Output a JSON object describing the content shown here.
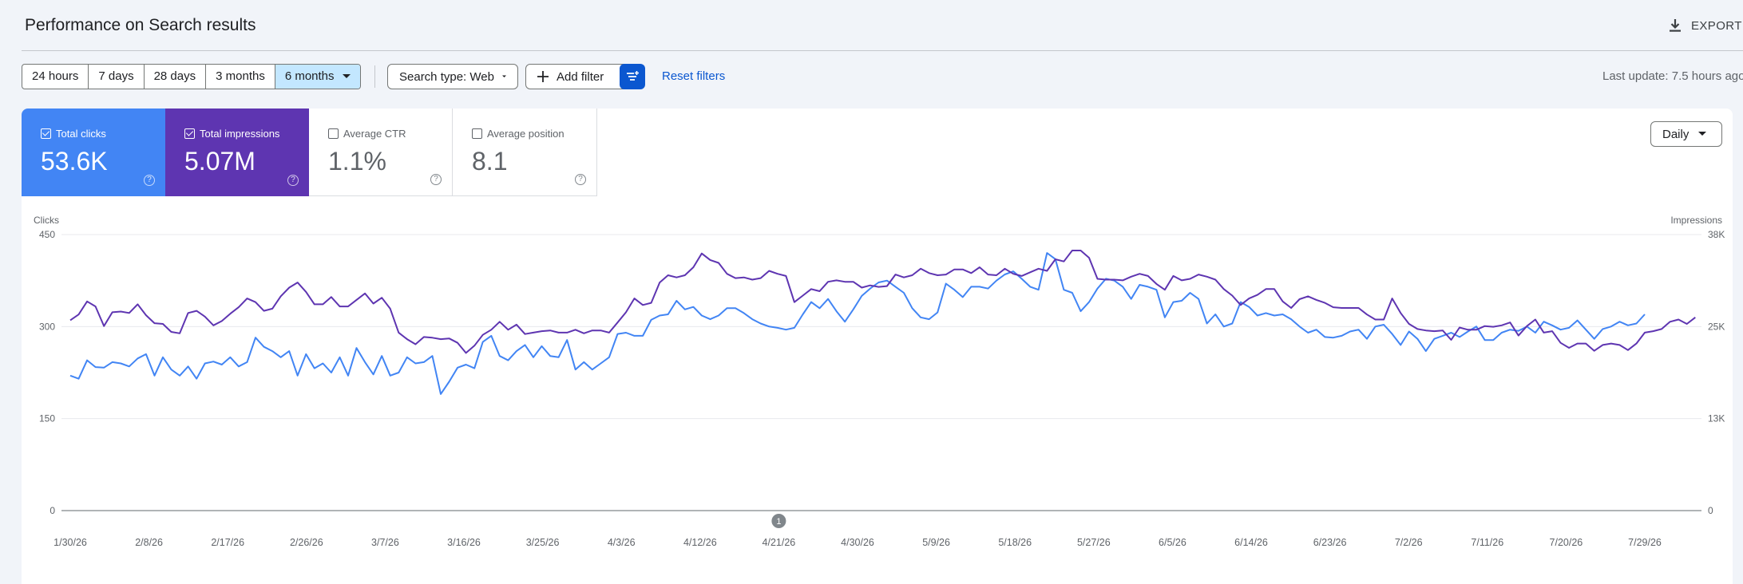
{
  "header": {
    "title": "Performance on Search results",
    "export_label": "EXPORT",
    "export_icon": "download-icon"
  },
  "filters": {
    "ranges": [
      "24 hours",
      "7 days",
      "28 days",
      "3 months",
      "6 months"
    ],
    "active_range": "6 months",
    "search_type_label": "Search type: Web",
    "add_filter_label": "Add filter",
    "reset_label": "Reset filters",
    "last_update": "Last update: 7.5 hours ago"
  },
  "metrics": {
    "clicks": {
      "label": "Total clicks",
      "value": "53.6K",
      "checked": true,
      "color": "#4285f4"
    },
    "impressions": {
      "label": "Total impressions",
      "value": "5.07M",
      "checked": true,
      "color": "#5e35b1"
    },
    "ctr": {
      "label": "Average CTR",
      "value": "1.1%",
      "checked": false
    },
    "position": {
      "label": "Average position",
      "value": "8.1",
      "checked": false
    }
  },
  "granularity": "Daily",
  "chart_data": {
    "type": "line",
    "ylabel_left": "Clicks",
    "ylabel_right": "Impressions",
    "y_left_ticks": [
      "450",
      "300",
      "150",
      "0"
    ],
    "y_left_range": [
      0,
      450
    ],
    "y_right_ticks": [
      "38K",
      "25K",
      "13K",
      "0"
    ],
    "y_right_range": [
      0,
      38000
    ],
    "x_tick_labels": [
      "1/30/26",
      "2/8/26",
      "2/17/26",
      "2/26/26",
      "3/7/26",
      "3/16/26",
      "3/25/26",
      "4/3/26",
      "4/12/26",
      "4/21/26",
      "4/30/26",
      "5/9/26",
      "5/18/26",
      "5/27/26",
      "6/5/26",
      "6/14/26",
      "6/23/26",
      "7/2/26",
      "7/11/26",
      "7/20/26",
      "7/29/26"
    ],
    "annotation": {
      "label": "1",
      "at_tick": "4/21/26"
    },
    "grid": true,
    "series": [
      {
        "name": "Total clicks",
        "color": "#4285f4",
        "axis": "left",
        "values": [
          220,
          215,
          245,
          234,
          233,
          242,
          240,
          235,
          248,
          255,
          220,
          250,
          230,
          220,
          235,
          215,
          240,
          243,
          238,
          250,
          235,
          242,
          282,
          267,
          260,
          250,
          260,
          220,
          255,
          232,
          240,
          225,
          250,
          220,
          265,
          242,
          222,
          252,
          220,
          225,
          250,
          240,
          242,
          252,
          190,
          210,
          233,
          238,
          232,
          275,
          285,
          252,
          245,
          260,
          270,
          250,
          268,
          252,
          250,
          278,
          230,
          242,
          230,
          240,
          250,
          288,
          290,
          285,
          285,
          311,
          318,
          320,
          342,
          328,
          332,
          318,
          312,
          318,
          330,
          330,
          322,
          312,
          305,
          300,
          298,
          295,
          298,
          320,
          340,
          330,
          345,
          325,
          308,
          328,
          350,
          362,
          372,
          375,
          365,
          355,
          330,
          315,
          312,
          323,
          370,
          360,
          348,
          365,
          365,
          362,
          375,
          385,
          390,
          378,
          365,
          360,
          420,
          410,
          360,
          355,
          325,
          340,
          362,
          378,
          375,
          365,
          345,
          368,
          365,
          360,
          315,
          340,
          342,
          355,
          345,
          305,
          320,
          300,
          305,
          340,
          332,
          318,
          322,
          318,
          320,
          312,
          300,
          290,
          295,
          283,
          282,
          285,
          292,
          295,
          280,
          300,
          303,
          288,
          270,
          292,
          280,
          260,
          280,
          285,
          290,
          283,
          292,
          300,
          278,
          278,
          290,
          295,
          293,
          300,
          290,
          308,
          302,
          295,
          298,
          310,
          295,
          280,
          296,
          300,
          308,
          302,
          305,
          320
        ]
      },
      {
        "name": "Total impressions",
        "color": "#5e35b1",
        "axis": "right",
        "values": [
          26200,
          27000,
          28800,
          28100,
          25400,
          27300,
          27400,
          27200,
          28400,
          26900,
          25800,
          25700,
          24600,
          24400,
          27200,
          27500,
          26700,
          25500,
          26100,
          27100,
          28000,
          29200,
          28700,
          27500,
          27800,
          29500,
          30700,
          31400,
          30100,
          28400,
          28400,
          29400,
          28100,
          28100,
          29000,
          29900,
          28500,
          29300,
          27800,
          24500,
          23600,
          22900,
          23900,
          23800,
          23600,
          23700,
          23100,
          21700,
          22700,
          24200,
          24900,
          26000,
          24900,
          25600,
          24300,
          24500,
          24700,
          24800,
          24500,
          24500,
          24900,
          24400,
          24800,
          24800,
          24500,
          25900,
          27300,
          29200,
          28300,
          28600,
          31400,
          32400,
          32100,
          32400,
          33500,
          35400,
          34500,
          34100,
          32600,
          32000,
          32100,
          31800,
          32000,
          33000,
          32600,
          32300,
          28700,
          29600,
          30500,
          30200,
          31500,
          31700,
          31500,
          31500,
          30700,
          31000,
          30800,
          30900,
          32500,
          32100,
          32400,
          33300,
          32700,
          32400,
          32500,
          33200,
          33200,
          32700,
          33500,
          32500,
          32400,
          33300,
          32600,
          32300,
          32800,
          33300,
          33000,
          34600,
          34300,
          35800,
          35800,
          34800,
          31900,
          31800,
          31800,
          31700,
          32200,
          32600,
          32300,
          31200,
          30400,
          32300,
          31700,
          31900,
          32500,
          32200,
          31800,
          30500,
          29600,
          28300,
          29200,
          29700,
          30500,
          30500,
          28800,
          27900,
          29100,
          29500,
          29000,
          28600,
          28000,
          27900,
          27900,
          27900,
          27000,
          26300,
          26300,
          29200,
          27200,
          25700,
          25000,
          24800,
          24700,
          24800,
          23500,
          25200,
          24900,
          24900,
          25400,
          25300,
          25500,
          25900,
          24100,
          25400,
          26300,
          24500,
          24700,
          23100,
          22400,
          23000,
          23000,
          22000,
          22800,
          23000,
          22800,
          22100,
          23000,
          24500,
          24700,
          25000,
          26000,
          26300,
          25700,
          26600
        ]
      }
    ]
  }
}
